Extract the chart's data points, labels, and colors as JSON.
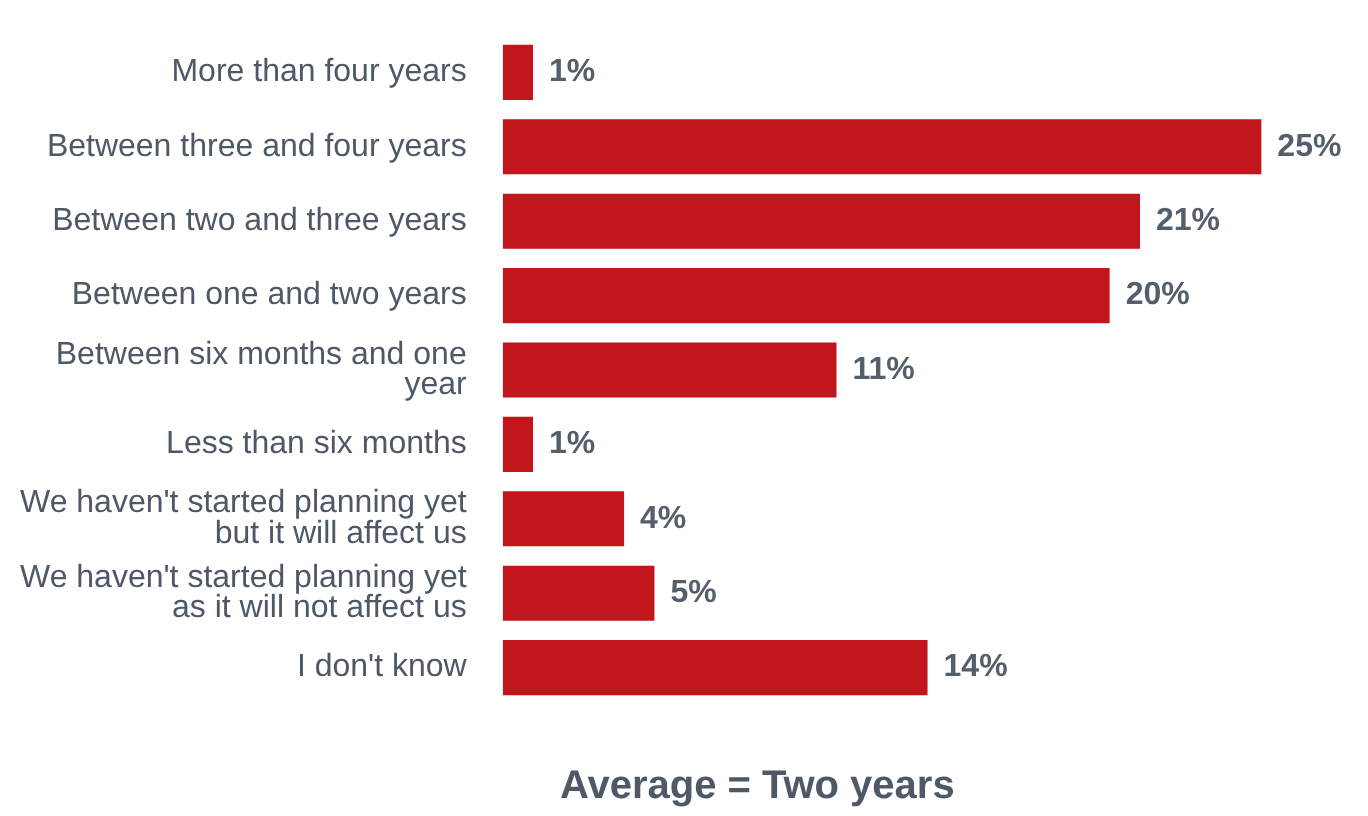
{
  "chart_data": {
    "type": "bar",
    "orientation": "horizontal",
    "categories": [
      "More than four years",
      "Between three and four years",
      "Between two and three years",
      "Between one and two years",
      "Between six months and one year",
      "Less than six months",
      "We haven't started planning yet but it will affect us",
      "We haven't started planning yet as it will not affect us",
      "I don't know"
    ],
    "values": [
      1,
      25,
      21,
      20,
      11,
      1,
      4,
      5,
      14
    ],
    "value_labels": [
      "1%",
      "25%",
      "21%",
      "20%",
      "11%",
      "1%",
      "4%",
      "5%",
      "14%"
    ],
    "color": "#c1161c",
    "legend": false,
    "annotations": [
      "Average = Two years"
    ]
  }
}
